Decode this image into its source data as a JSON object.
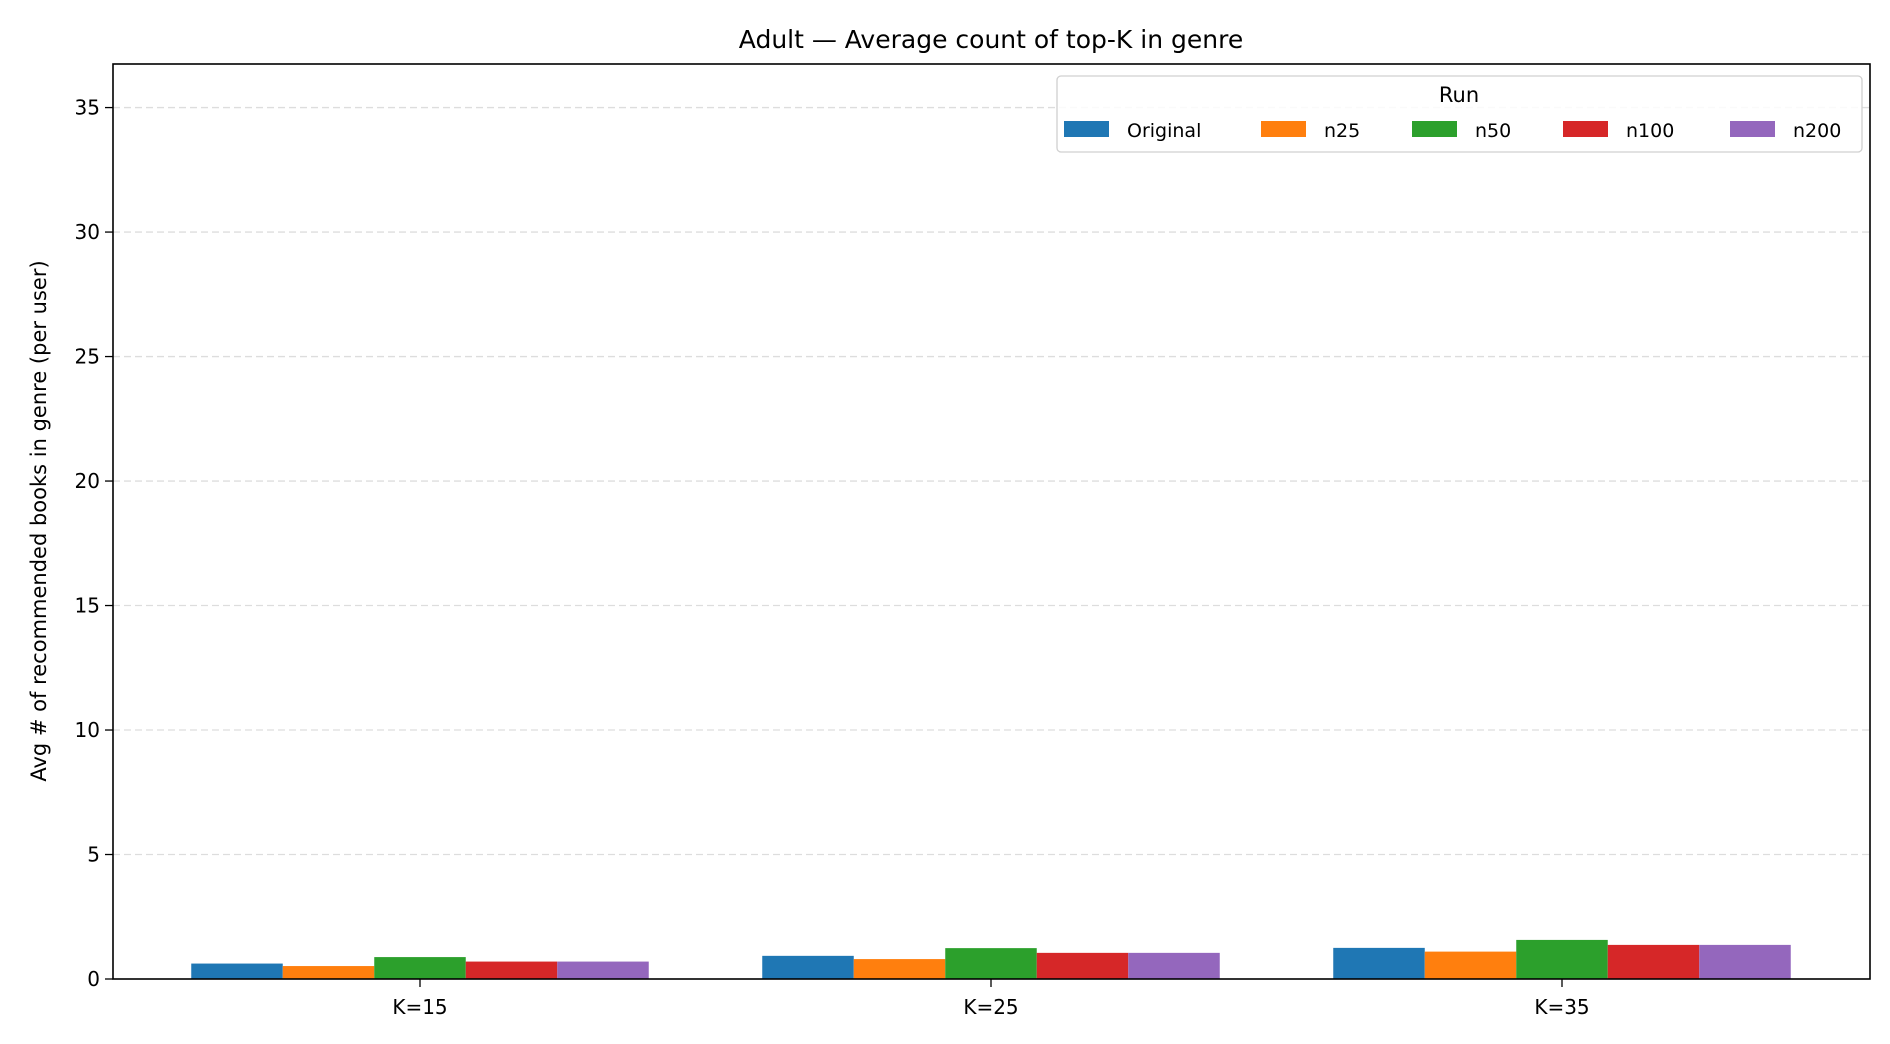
{
  "chart_data": {
    "type": "bar",
    "title": "Adult — Average count of top-K in genre",
    "xlabel": "",
    "ylabel": "Avg # of recommended books in genre (per user)",
    "categories": [
      "K=15",
      "K=25",
      "K=35"
    ],
    "series": [
      {
        "name": "Original",
        "color": "#1f77b4",
        "values": [
          0.62,
          0.93,
          1.25
        ]
      },
      {
        "name": "n25",
        "color": "#ff7f0e",
        "values": [
          0.52,
          0.8,
          1.1
        ]
      },
      {
        "name": "n50",
        "color": "#2ca02c",
        "values": [
          0.88,
          1.24,
          1.57
        ]
      },
      {
        "name": "n100",
        "color": "#d62728",
        "values": [
          0.7,
          1.05,
          1.37
        ]
      },
      {
        "name": "n200",
        "color": "#9467bd",
        "values": [
          0.7,
          1.05,
          1.37
        ]
      }
    ],
    "ylim": [
      0,
      36.75
    ],
    "yticks": [
      0,
      5,
      10,
      15,
      20,
      25,
      30,
      35
    ],
    "grid": {
      "y": true,
      "style": "dashed"
    },
    "legend": {
      "title": "Run",
      "placement": "top-right",
      "columns": 5
    }
  }
}
